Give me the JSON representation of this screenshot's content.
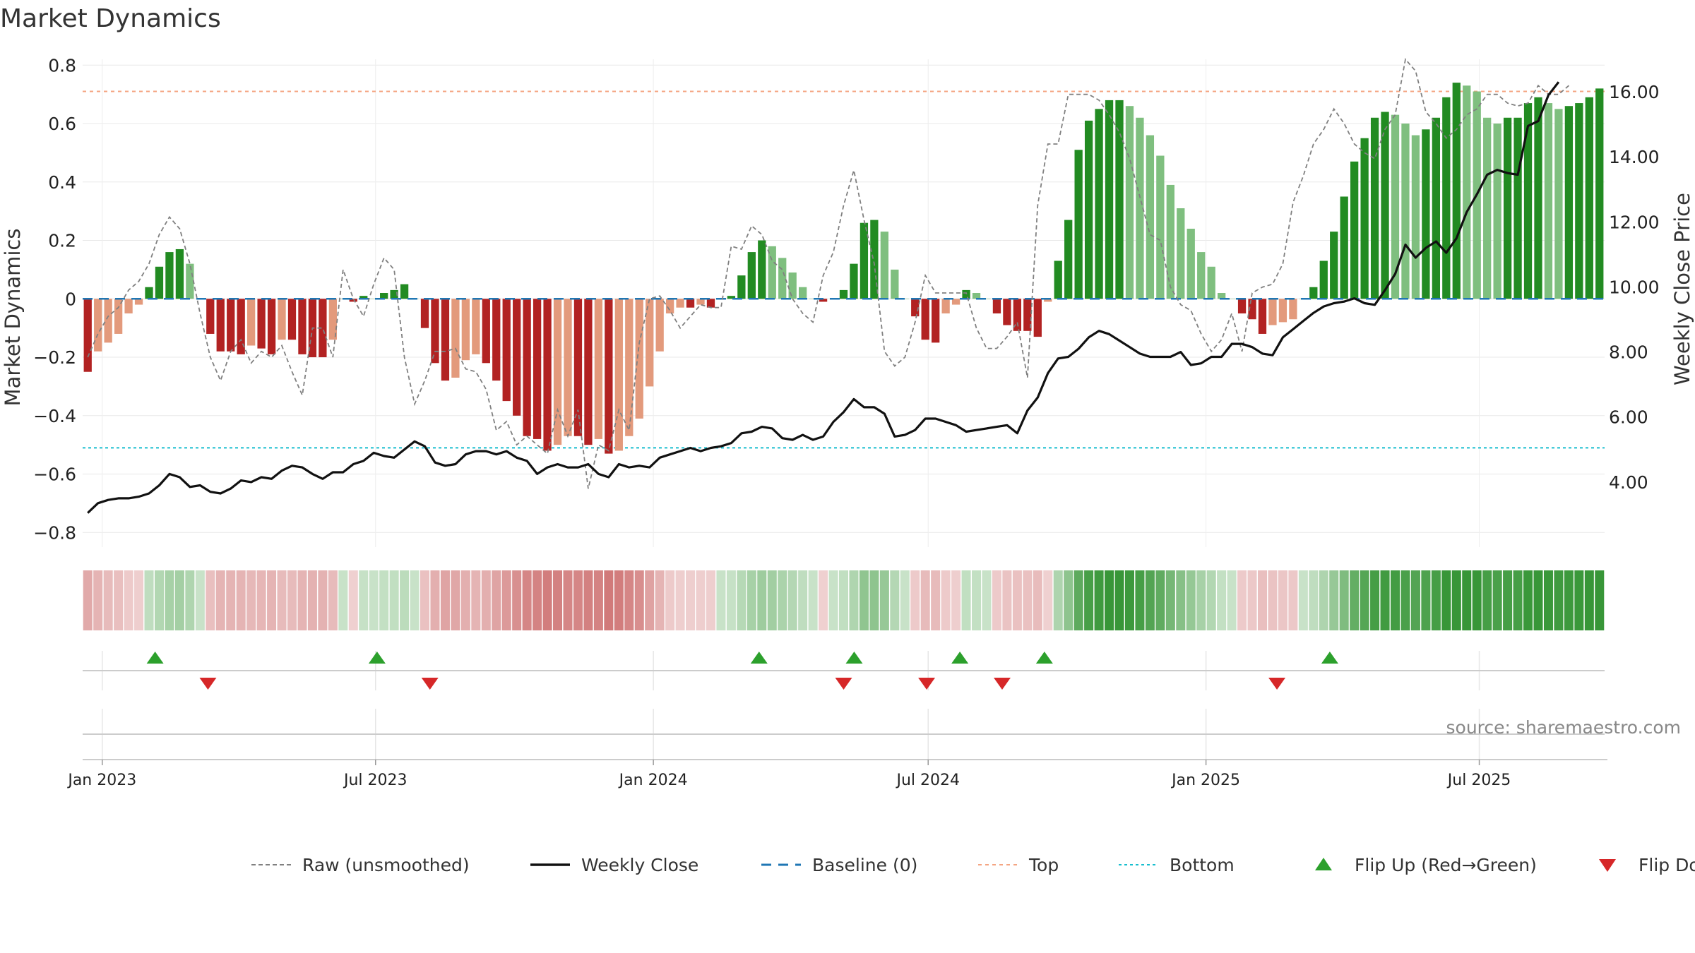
{
  "chart_data": {
    "type": "bar",
    "title": "Market Dynamics",
    "ylabel_left": "Market Dynamics",
    "ylabel_right": "Weekly Close Price",
    "source": "source: sharemaestro.com",
    "ylim_left": [
      -0.85,
      0.82
    ],
    "ylim_right": [
      2.0,
      17.0
    ],
    "yticks_left": [
      0.8,
      0.6,
      0.4,
      0.2,
      0,
      -0.2,
      -0.4,
      -0.6,
      -0.8
    ],
    "yticks_left_labels": [
      "0.8",
      "0.6",
      "0.4",
      "0.2",
      "0",
      "−0.2",
      "−0.4",
      "−0.6",
      "−0.8"
    ],
    "yticks_right": [
      16,
      14,
      12,
      10,
      8,
      6,
      4
    ],
    "yticks_right_labels": [
      "16.00",
      "14.00",
      "12.00",
      "10.00",
      "8.00",
      "6.00",
      "4.00"
    ],
    "x_start": "2022-12-19",
    "x_end": "2025-09-22",
    "date_ticks": [
      {
        "date": "2023-01-01",
        "label": "Jan 2023"
      },
      {
        "date": "2023-07-01",
        "label": "Jul 2023"
      },
      {
        "date": "2024-01-01",
        "label": "Jan 2024"
      },
      {
        "date": "2024-07-01",
        "label": "Jul 2024"
      },
      {
        "date": "2025-01-01",
        "label": "Jan 2025"
      },
      {
        "date": "2025-07-01",
        "label": "Jul 2025"
      }
    ],
    "top_line": 0.71,
    "bottom_line": -0.51,
    "grid": true,
    "legend_position": "bottom-center",
    "colors": {
      "strong_green": "#228b22",
      "light_green": "#7fbf7f",
      "strong_red": "#b22222",
      "light_red": "#e39a7c",
      "close_line": "#111111",
      "raw_line": "#808080",
      "baseline": "#1f77b4",
      "top": "#f4a582",
      "bottom": "#17becf",
      "flip_up": "#2ca02c",
      "flip_down": "#d62728"
    },
    "bars": [
      -0.25,
      -0.18,
      -0.15,
      -0.12,
      -0.05,
      -0.02,
      0.04,
      0.11,
      0.16,
      0.17,
      0.12,
      0.0,
      -0.12,
      -0.18,
      -0.18,
      -0.19,
      -0.16,
      -0.17,
      -0.19,
      -0.14,
      -0.14,
      -0.19,
      -0.2,
      -0.2,
      -0.14,
      0.0,
      -0.01,
      0.01,
      0.0,
      0.02,
      0.03,
      0.05,
      0.0,
      -0.1,
      -0.22,
      -0.28,
      -0.27,
      -0.21,
      -0.19,
      -0.22,
      -0.28,
      -0.35,
      -0.4,
      -0.47,
      -0.48,
      -0.52,
      -0.5,
      -0.47,
      -0.47,
      -0.5,
      -0.48,
      -0.53,
      -0.52,
      -0.47,
      -0.41,
      -0.3,
      -0.18,
      -0.05,
      -0.03,
      -0.03,
      -0.02,
      -0.03,
      0.0,
      0.01,
      0.08,
      0.16,
      0.2,
      0.18,
      0.14,
      0.09,
      0.04,
      0.0,
      -0.01,
      0.0,
      0.03,
      0.12,
      0.26,
      0.27,
      0.23,
      0.1,
      0.0,
      -0.06,
      -0.14,
      -0.15,
      -0.05,
      -0.02,
      0.03,
      0.02,
      0.0,
      -0.05,
      -0.09,
      -0.11,
      -0.11,
      -0.13,
      -0.01,
      0.13,
      0.27,
      0.51,
      0.61,
      0.65,
      0.68,
      0.68,
      0.66,
      0.62,
      0.56,
      0.49,
      0.39,
      0.31,
      0.24,
      0.16,
      0.11,
      0.02,
      0.0,
      -0.05,
      -0.07,
      -0.12,
      -0.09,
      -0.08,
      -0.07,
      0.0,
      0.04,
      0.13,
      0.23,
      0.35,
      0.47,
      0.55,
      0.62,
      0.64,
      0.63,
      0.6,
      0.56,
      0.58,
      0.62,
      0.69,
      0.74,
      0.73,
      0.71,
      0.62,
      0.6,
      0.62,
      0.62,
      0.67,
      0.69,
      0.67,
      0.65,
      0.66,
      0.67,
      0.69,
      0.72
    ],
    "raw": [
      -0.2,
      -0.12,
      -0.06,
      -0.03,
      0.03,
      0.06,
      0.12,
      0.22,
      0.28,
      0.24,
      0.12,
      -0.05,
      -0.2,
      -0.28,
      -0.18,
      -0.14,
      -0.22,
      -0.18,
      -0.2,
      -0.16,
      -0.25,
      -0.33,
      -0.1,
      -0.1,
      -0.2,
      0.1,
      0.0,
      -0.06,
      0.05,
      0.14,
      0.1,
      -0.2,
      -0.36,
      -0.28,
      -0.18,
      -0.18,
      -0.17,
      -0.24,
      -0.25,
      -0.31,
      -0.45,
      -0.42,
      -0.5,
      -0.47,
      -0.5,
      -0.53,
      -0.38,
      -0.47,
      -0.38,
      -0.65,
      -0.5,
      -0.52,
      -0.38,
      -0.45,
      -0.15,
      0.0,
      0.01,
      -0.04,
      -0.1,
      -0.06,
      -0.02,
      -0.03,
      -0.03,
      0.18,
      0.17,
      0.25,
      0.22,
      0.13,
      0.1,
      0.0,
      -0.05,
      -0.08,
      0.08,
      0.16,
      0.32,
      0.44,
      0.27,
      0.12,
      -0.18,
      -0.23,
      -0.2,
      -0.08,
      0.08,
      0.02,
      0.02,
      0.02,
      0.02,
      -0.1,
      -0.17,
      -0.17,
      -0.13,
      -0.08,
      -0.27,
      0.32,
      0.53,
      0.53,
      0.7,
      0.7,
      0.7,
      0.68,
      0.63,
      0.57,
      0.48,
      0.35,
      0.22,
      0.2,
      0.04,
      -0.02,
      -0.04,
      -0.12,
      -0.18,
      -0.14,
      -0.05,
      -0.18,
      0.02,
      0.04,
      0.05,
      0.12,
      0.33,
      0.42,
      0.53,
      0.58,
      0.65,
      0.6,
      0.53,
      0.5,
      0.48,
      0.58,
      0.63,
      0.82,
      0.78,
      0.64,
      0.6,
      0.55,
      0.58,
      0.63,
      0.65,
      0.7,
      0.7,
      0.67,
      0.66,
      0.67,
      0.73,
      0.7,
      0.7,
      0.73
    ],
    "close": [
      3.05,
      3.35,
      3.45,
      3.5,
      3.5,
      3.55,
      3.65,
      3.9,
      4.25,
      4.15,
      3.85,
      3.9,
      3.7,
      3.65,
      3.8,
      4.05,
      4.0,
      4.15,
      4.1,
      4.35,
      4.5,
      4.45,
      4.25,
      4.1,
      4.3,
      4.3,
      4.55,
      4.65,
      4.9,
      4.8,
      4.75,
      5.0,
      5.25,
      5.1,
      4.6,
      4.5,
      4.55,
      4.85,
      4.95,
      4.95,
      4.85,
      4.95,
      4.75,
      4.65,
      4.25,
      4.45,
      4.55,
      4.45,
      4.45,
      4.55,
      4.25,
      4.15,
      4.55,
      4.45,
      4.5,
      4.45,
      4.75,
      4.85,
      4.95,
      5.05,
      4.95,
      5.05,
      5.1,
      5.2,
      5.5,
      5.55,
      5.7,
      5.65,
      5.35,
      5.3,
      5.45,
      5.3,
      5.4,
      5.85,
      6.15,
      6.55,
      6.3,
      6.3,
      6.1,
      5.4,
      5.45,
      5.6,
      5.95,
      5.95,
      5.85,
      5.75,
      5.55,
      5.6,
      5.65,
      5.7,
      5.75,
      5.5,
      6.2,
      6.6,
      7.35,
      7.8,
      7.85,
      8.1,
      8.45,
      8.65,
      8.55,
      8.35,
      8.15,
      7.95,
      7.85,
      7.85,
      7.85,
      8.0,
      7.6,
      7.65,
      7.85,
      7.85,
      8.25,
      8.25,
      8.15,
      7.95,
      7.9,
      8.45,
      8.7,
      8.95,
      9.2,
      9.4,
      9.5,
      9.55,
      9.65,
      9.5,
      9.45,
      9.9,
      10.4,
      11.3,
      10.9,
      11.2,
      11.4,
      11.05,
      11.5,
      12.3,
      12.85,
      13.45,
      13.6,
      13.5,
      13.45,
      14.95,
      15.1,
      15.9,
      16.3
    ]
  },
  "flips": {
    "up": [
      "2023-02-05",
      "2023-07-02",
      "2024-03-11",
      "2024-05-13",
      "2024-07-22",
      "2024-09-16",
      "2025-03-24"
    ],
    "down": [
      "2023-03-12",
      "2023-08-06",
      "2024-05-06",
      "2024-06-30",
      "2024-08-19",
      "2025-02-17"
    ]
  },
  "legend": [
    {
      "key": "raw",
      "label": "Raw (unsmoothed)"
    },
    {
      "key": "close",
      "label": "Weekly Close"
    },
    {
      "key": "baseline",
      "label": "Baseline (0)"
    },
    {
      "key": "top",
      "label": "Top"
    },
    {
      "key": "bottom",
      "label": "Bottom"
    },
    {
      "key": "flip_up",
      "label": "Flip Up (Red→Green)"
    },
    {
      "key": "flip_down",
      "label": "Flip Down (Green→Red)"
    }
  ]
}
